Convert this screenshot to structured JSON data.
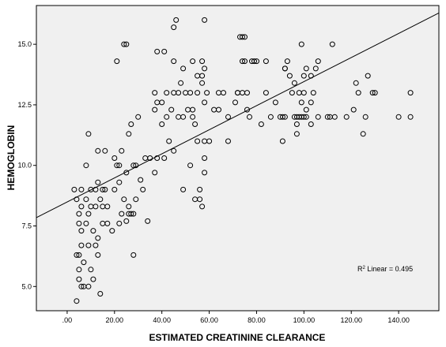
{
  "chart_data": {
    "type": "scatter",
    "title": "",
    "xlabel": "ESTIMATED CREATININE CLEARANCE",
    "ylabel": "HEMOGLOBIN",
    "xlim": [
      -13,
      157
    ],
    "ylim": [
      4.0,
      16.6
    ],
    "x_ticks": [
      0,
      20,
      40,
      60,
      80,
      100,
      120,
      140
    ],
    "x_tick_labels": [
      ".00",
      "20.00",
      "40.00",
      "60.00",
      "80.00",
      "100.00",
      "120.00",
      "140.00"
    ],
    "y_ticks": [
      5.0,
      7.5,
      10.0,
      12.5,
      15.0
    ],
    "y_tick_labels": [
      "5.0",
      "7.5",
      "10.0",
      "12.5",
      "15.0"
    ],
    "grid": false,
    "fit_line": {
      "label_prefix": "R",
      "label_sup": "2",
      "label_suffix": " Linear = 0.495",
      "intercept": 8.49,
      "slope": 0.0497
    },
    "colors": {
      "plot_bg": "#f0f0f0",
      "marker_stroke": "#000000",
      "line": "#000000"
    },
    "points": [
      [
        4,
        4.4
      ],
      [
        5,
        5.7
      ],
      [
        5,
        6.3
      ],
      [
        4,
        6.3
      ],
      [
        5,
        5.3
      ],
      [
        6,
        5.0
      ],
      [
        7,
        5.0
      ],
      [
        9,
        5.0
      ],
      [
        11,
        5.3
      ],
      [
        10,
        5.7
      ],
      [
        13,
        6.3
      ],
      [
        14,
        4.7
      ],
      [
        7,
        6.0
      ],
      [
        6,
        6.7
      ],
      [
        6,
        7.3
      ],
      [
        5,
        7.6
      ],
      [
        8,
        7.6
      ],
      [
        9,
        6.7
      ],
      [
        12,
        6.7
      ],
      [
        13,
        7.0
      ],
      [
        11,
        7.3
      ],
      [
        15,
        7.6
      ],
      [
        17,
        7.6
      ],
      [
        19,
        7.3
      ],
      [
        22,
        7.6
      ],
      [
        23,
        8.0
      ],
      [
        26,
        8.0
      ],
      [
        28,
        8.0
      ],
      [
        28,
        6.3
      ],
      [
        25,
        7.7
      ],
      [
        5,
        8.0
      ],
      [
        6,
        8.3
      ],
      [
        9,
        8.0
      ],
      [
        10,
        8.3
      ],
      [
        12,
        8.3
      ],
      [
        14,
        8.6
      ],
      [
        15,
        8.3
      ],
      [
        17,
        8.3
      ],
      [
        20,
        9.0
      ],
      [
        22,
        9.3
      ],
      [
        24,
        8.6
      ],
      [
        26,
        8.3
      ],
      [
        27,
        8.0
      ],
      [
        29,
        8.6
      ],
      [
        32,
        9.0
      ],
      [
        34,
        7.7
      ],
      [
        3,
        9.0
      ],
      [
        4,
        8.6
      ],
      [
        6,
        9.0
      ],
      [
        8,
        8.6
      ],
      [
        10,
        9.0
      ],
      [
        12,
        9.0
      ],
      [
        13,
        9.3
      ],
      [
        15,
        9.0
      ],
      [
        16,
        9.0
      ],
      [
        21,
        10.0
      ],
      [
        22,
        10.0
      ],
      [
        25,
        9.7
      ],
      [
        28,
        10.0
      ],
      [
        29,
        10.0
      ],
      [
        31,
        9.4
      ],
      [
        33,
        10.3
      ],
      [
        35,
        10.3
      ],
      [
        8,
        10.0
      ],
      [
        9,
        11.3
      ],
      [
        13,
        10.6
      ],
      [
        16,
        10.6
      ],
      [
        20,
        10.3
      ],
      [
        23,
        10.6
      ],
      [
        26,
        11.3
      ],
      [
        27,
        11.7
      ],
      [
        30,
        12.0
      ],
      [
        37,
        9.7
      ],
      [
        38,
        10.3
      ],
      [
        41,
        10.3
      ],
      [
        43,
        11.0
      ],
      [
        45,
        10.6
      ],
      [
        40,
        11.7
      ],
      [
        42,
        12.0
      ],
      [
        44,
        12.3
      ],
      [
        37,
        12.3
      ],
      [
        38,
        12.6
      ],
      [
        40,
        12.6
      ],
      [
        42,
        13.0
      ],
      [
        47,
        12.0
      ],
      [
        49,
        12.0
      ],
      [
        51,
        12.3
      ],
      [
        50,
        13.0
      ],
      [
        53,
        12.3
      ],
      [
        54,
        11.7
      ],
      [
        55,
        11.0
      ],
      [
        56,
        9.0
      ],
      [
        57,
        8.3
      ],
      [
        56,
        8.6
      ],
      [
        58,
        9.7
      ],
      [
        58,
        10.3
      ],
      [
        58,
        11.0
      ],
      [
        60,
        11.0
      ],
      [
        62,
        12.3
      ],
      [
        64,
        12.3
      ],
      [
        53,
        14.3
      ],
      [
        55,
        13.0
      ],
      [
        57,
        13.4
      ],
      [
        57,
        13.7
      ],
      [
        58,
        14.0
      ],
      [
        59,
        13.0
      ],
      [
        58,
        12.6
      ],
      [
        49,
        9.0
      ],
      [
        54,
        8.6
      ],
      [
        52,
        10.0
      ],
      [
        53,
        12.0
      ],
      [
        47,
        13.0
      ],
      [
        48,
        13.4
      ],
      [
        45,
        13.0
      ],
      [
        45,
        14.3
      ],
      [
        38,
        14.7
      ],
      [
        41,
        14.7
      ],
      [
        37,
        13.0
      ],
      [
        45,
        15.7
      ],
      [
        46,
        16.0
      ],
      [
        58,
        16.0
      ],
      [
        21,
        14.3
      ],
      [
        24,
        15.0
      ],
      [
        25,
        15.0
      ],
      [
        49,
        14.0
      ],
      [
        52,
        13.0
      ],
      [
        55,
        13.7
      ],
      [
        57,
        14.3
      ],
      [
        66,
        13.0
      ],
      [
        68,
        12.0
      ],
      [
        68,
        11.0
      ],
      [
        71,
        12.6
      ],
      [
        72,
        13.0
      ],
      [
        74,
        13.0
      ],
      [
        76,
        12.3
      ],
      [
        77,
        12.0
      ],
      [
        79,
        14.3
      ],
      [
        80,
        14.3
      ],
      [
        78,
        14.3
      ],
      [
        73,
        15.3
      ],
      [
        74,
        15.3
      ],
      [
        75,
        15.3
      ],
      [
        74,
        14.3
      ],
      [
        75,
        14.3
      ],
      [
        82,
        11.7
      ],
      [
        84,
        13.0
      ],
      [
        84,
        14.3
      ],
      [
        86,
        12.0
      ],
      [
        88,
        12.6
      ],
      [
        90,
        12.0
      ],
      [
        91,
        12.0
      ],
      [
        92,
        12.0
      ],
      [
        91,
        11.0
      ],
      [
        92,
        14.0
      ],
      [
        93,
        14.3
      ],
      [
        94,
        13.7
      ],
      [
        95,
        13.0
      ],
      [
        96,
        12.0
      ],
      [
        97,
        12.0
      ],
      [
        98,
        12.0
      ],
      [
        99,
        12.0
      ],
      [
        100,
        12.0
      ],
      [
        101,
        12.0
      ],
      [
        97,
        11.7
      ],
      [
        97,
        11.3
      ],
      [
        99,
        12.6
      ],
      [
        100,
        13.0
      ],
      [
        100,
        13.7
      ],
      [
        101,
        14.0
      ],
      [
        103,
        13.7
      ],
      [
        104,
        13.0
      ],
      [
        105,
        14.0
      ],
      [
        106,
        14.3
      ],
      [
        103,
        12.6
      ],
      [
        101,
        12.3
      ],
      [
        106,
        12.0
      ],
      [
        99,
        15.0
      ],
      [
        92,
        14.0
      ],
      [
        96,
        13.4
      ],
      [
        98,
        13.0
      ],
      [
        110,
        12.0
      ],
      [
        111,
        12.0
      ],
      [
        112,
        15.0
      ],
      [
        113,
        12.0
      ],
      [
        118,
        12.0
      ],
      [
        121,
        12.3
      ],
      [
        122,
        13.4
      ],
      [
        123,
        13.0
      ],
      [
        125,
        11.3
      ],
      [
        126,
        12.0
      ],
      [
        127,
        13.7
      ],
      [
        129,
        13.0
      ],
      [
        130,
        13.0
      ],
      [
        140,
        12.0
      ],
      [
        145,
        12.0
      ],
      [
        145,
        13.0
      ],
      [
        103,
        11.7
      ],
      [
        64,
        13.0
      ],
      [
        72,
        13.0
      ],
      [
        76,
        13.0
      ]
    ]
  }
}
